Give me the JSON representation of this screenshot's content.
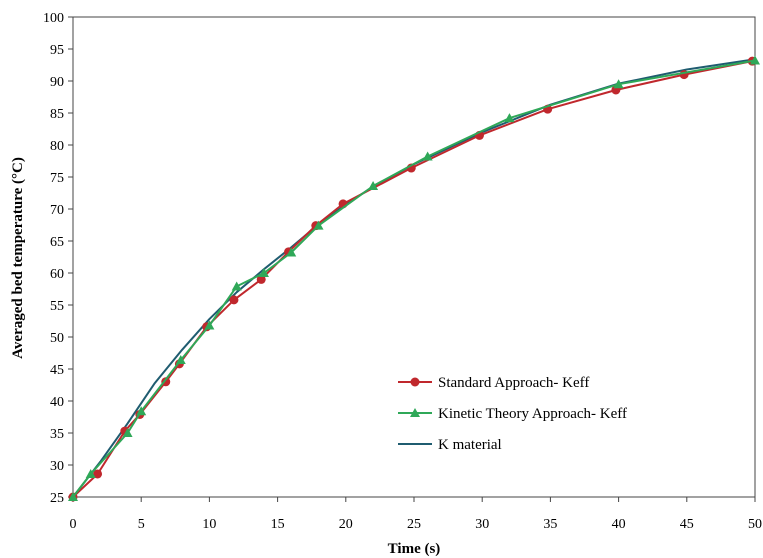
{
  "chart_data": {
    "type": "line",
    "xlabel": "Time (s)",
    "ylabel": "Averaged bed temperature (°C)",
    "xlim": [
      0,
      50
    ],
    "ylim": [
      25,
      100
    ],
    "xticks": [
      0,
      5,
      10,
      15,
      20,
      25,
      30,
      35,
      40,
      45,
      50
    ],
    "yticks": [
      25,
      30,
      35,
      40,
      45,
      50,
      55,
      60,
      65,
      70,
      75,
      80,
      85,
      90,
      95,
      100
    ],
    "grid": false,
    "legend_position": "lower-right",
    "series": [
      {
        "name": "Standard Approach- Keff",
        "color": "#c0282d",
        "marker": "circle",
        "x": [
          0,
          1.8,
          3.8,
          4.9,
          6.8,
          7.8,
          9.8,
          11.8,
          13.8,
          15.8,
          17.8,
          19.8,
          24.8,
          29.8,
          34.8,
          39.8,
          44.8,
          49.8
        ],
        "y": [
          25.0,
          28.6,
          35.3,
          37.9,
          43.0,
          45.8,
          51.6,
          55.8,
          59.0,
          63.3,
          67.4,
          70.8,
          76.4,
          81.5,
          85.6,
          88.6,
          91.0,
          93.1
        ]
      },
      {
        "name": "Kinetic Theory Approach- Keff",
        "color": "#2fa858",
        "marker": "triangle",
        "x": [
          0,
          1.3,
          4.0,
          5.0,
          7.9,
          10.0,
          12.0,
          14.0,
          16.0,
          18.0,
          22.0,
          26.0,
          32.0,
          40.0,
          50.0
        ],
        "y": [
          25.0,
          28.6,
          35.0,
          38.4,
          46.4,
          51.8,
          57.9,
          60.0,
          63.2,
          67.4,
          73.6,
          78.2,
          84.2,
          89.5,
          93.2
        ]
      },
      {
        "name": "K material",
        "color": "#1f5c70",
        "marker": "none",
        "x": [
          0,
          2,
          4,
          6,
          8,
          10,
          12,
          14,
          16,
          18,
          20,
          22,
          25,
          30,
          35,
          40,
          45,
          50
        ],
        "y": [
          25.0,
          30.5,
          36.5,
          42.8,
          48.0,
          52.8,
          57.0,
          60.6,
          64.0,
          67.6,
          70.7,
          73.5,
          77.0,
          82.0,
          86.3,
          89.6,
          91.8,
          93.4
        ]
      }
    ]
  }
}
